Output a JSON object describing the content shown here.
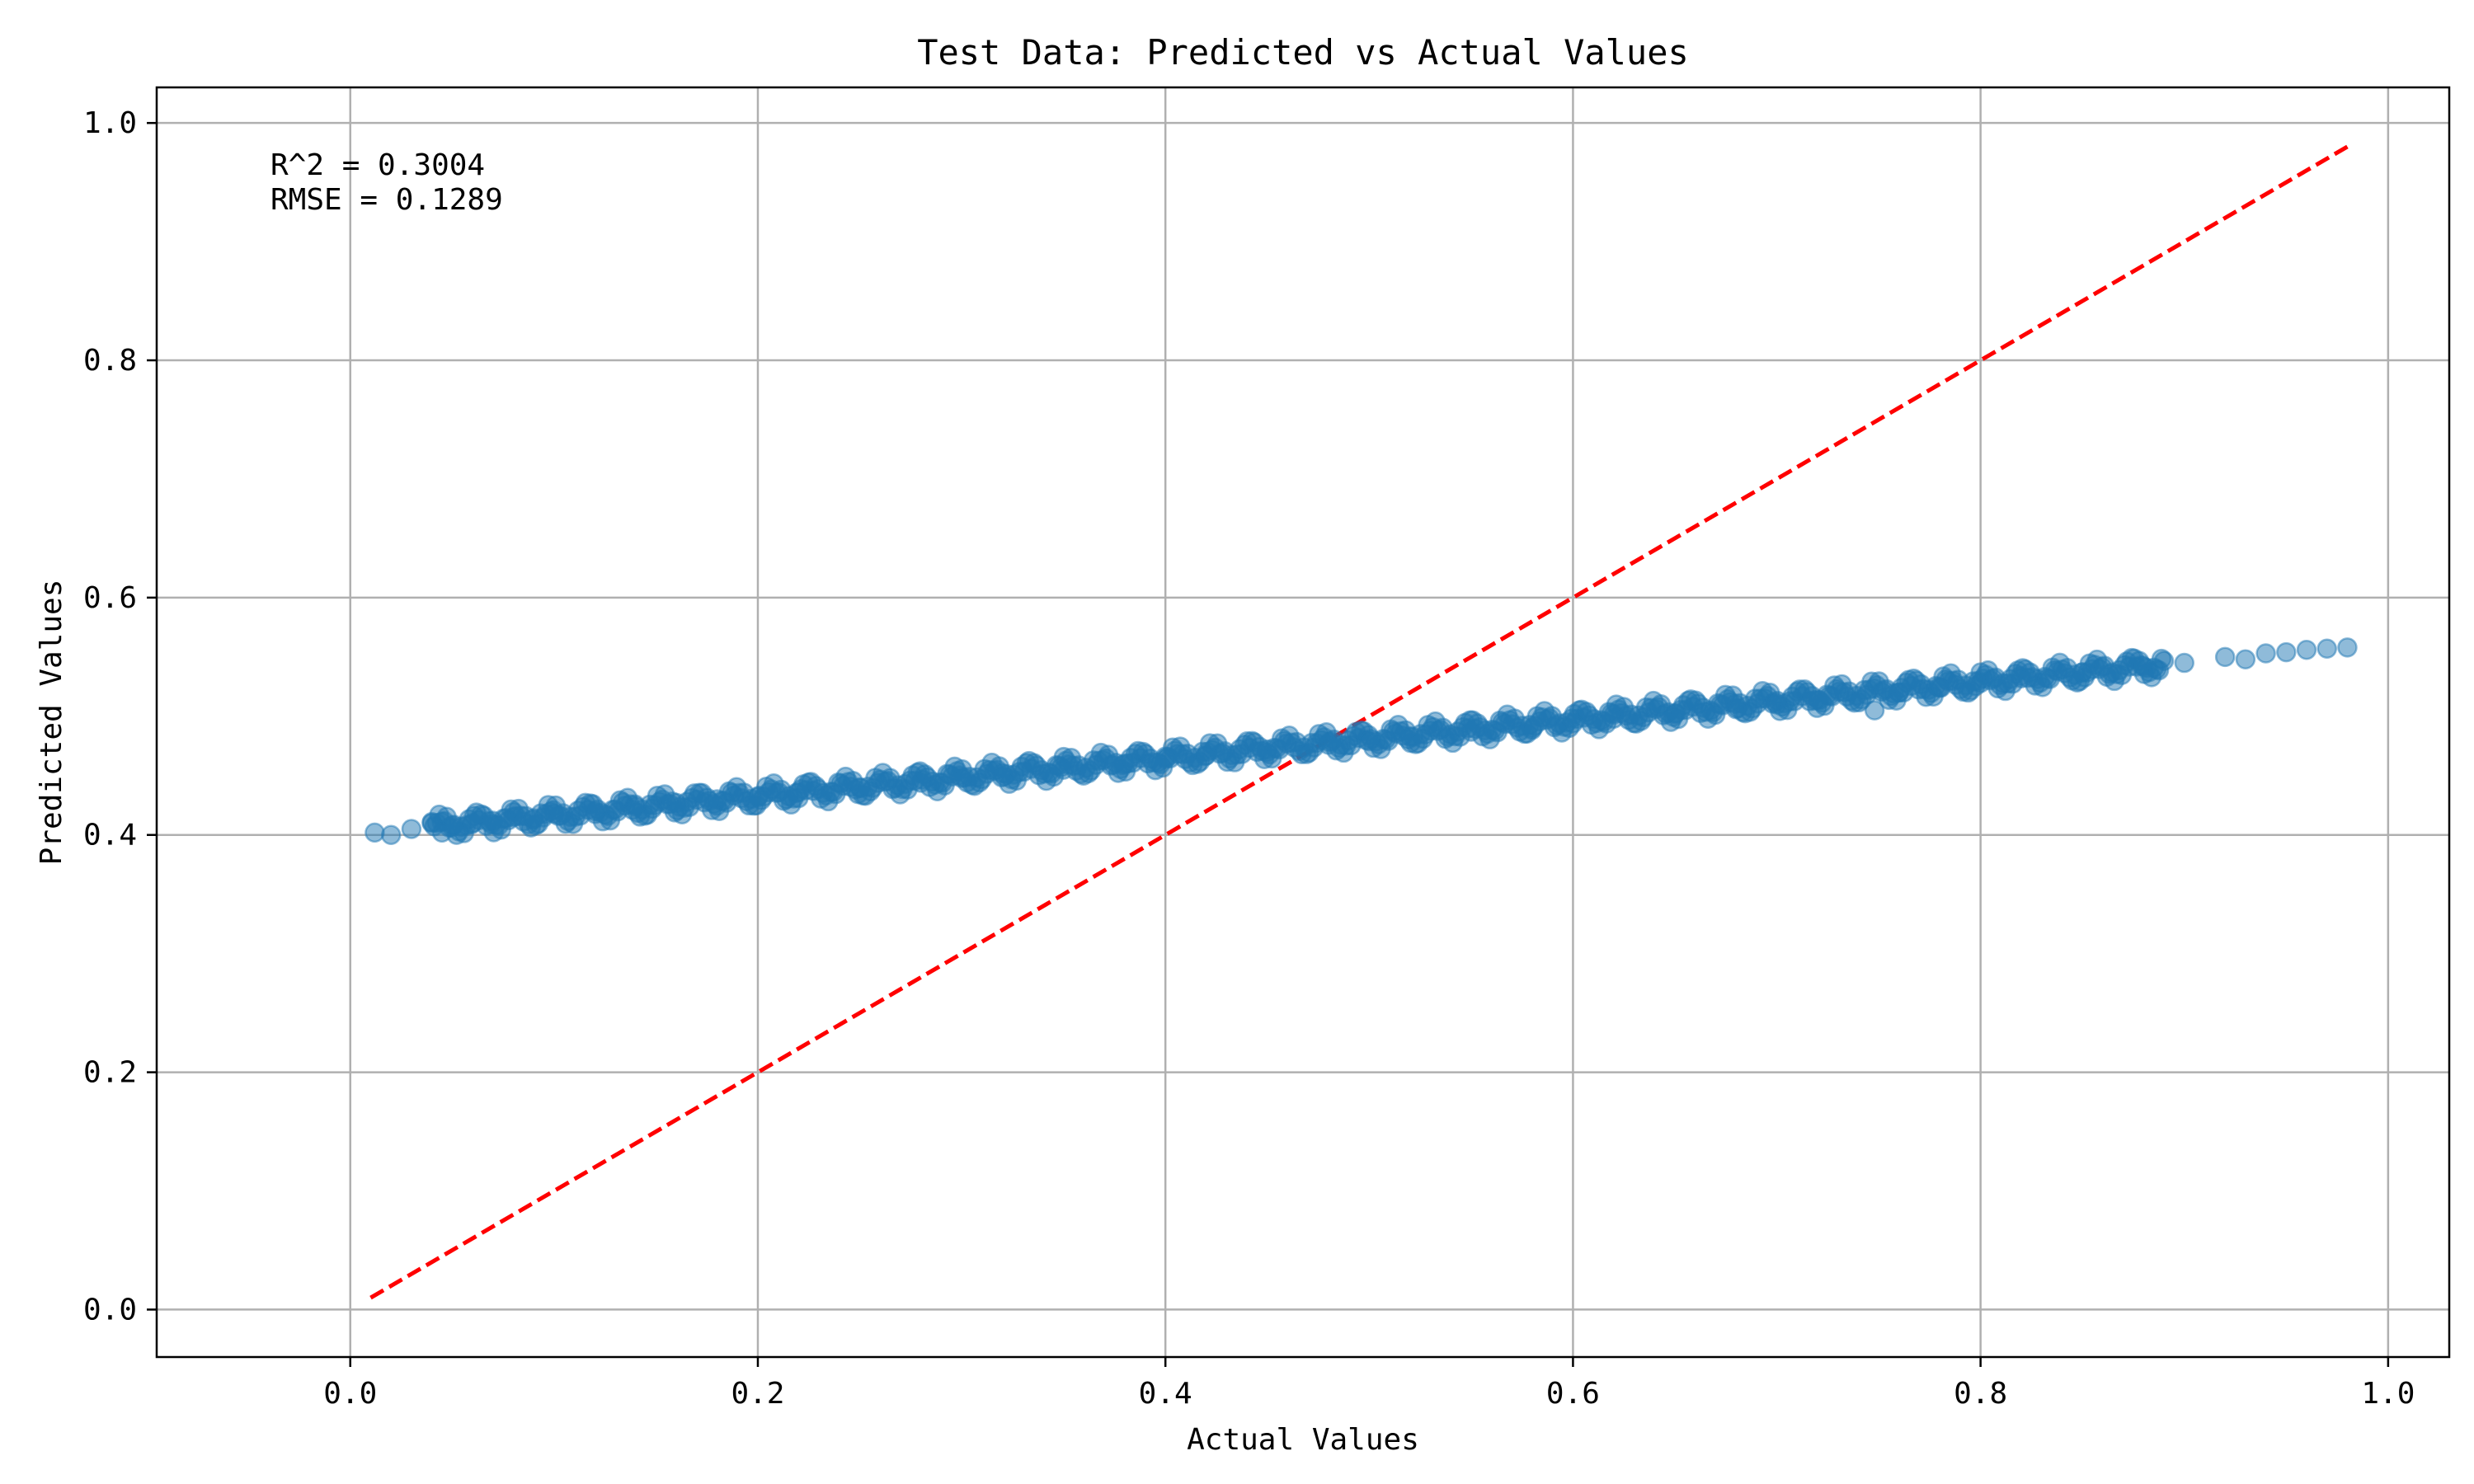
{
  "chart_data": {
    "type": "scatter",
    "title": "Test Data: Predicted vs Actual Values",
    "xlabel": "Actual Values",
    "ylabel": "Predicted Values",
    "xlim": [
      -0.095,
      1.03
    ],
    "ylim": [
      -0.04,
      1.03
    ],
    "xticks": [
      0.0,
      0.2,
      0.4,
      0.6,
      0.8,
      1.0
    ],
    "yticks": [
      0.0,
      0.2,
      0.4,
      0.6,
      0.8,
      1.0
    ],
    "xtick_labels": [
      "0.0",
      "0.2",
      "0.4",
      "0.6",
      "0.8",
      "1.0"
    ],
    "ytick_labels": [
      "0.0",
      "0.2",
      "0.4",
      "0.6",
      "0.8",
      "1.0"
    ],
    "grid": true,
    "annotations": [
      "R^2 = 0.3004",
      "RMSE = 0.1289"
    ],
    "reference_line": {
      "x": [
        0.01,
        0.98
      ],
      "y": [
        0.01,
        0.98
      ],
      "color": "#ff0000",
      "style": "dashed"
    },
    "series": [
      {
        "color": "#1f77b4",
        "alpha": 0.5,
        "trend": {
          "x": [
            0.01,
            0.98
          ],
          "y": [
            0.402,
            0.558
          ]
        },
        "x": [
          0.012,
          0.02,
          0.03,
          0.04,
          0.045,
          0.05,
          0.06,
          0.07,
          0.08,
          0.09,
          0.1,
          0.12,
          0.14,
          0.16,
          0.18,
          0.2,
          0.22,
          0.25,
          0.28,
          0.3,
          0.32,
          0.35,
          0.38,
          0.4,
          0.42,
          0.45,
          0.48,
          0.5,
          0.52,
          0.55,
          0.58,
          0.6,
          0.62,
          0.65,
          0.68,
          0.7,
          0.72,
          0.748,
          0.76,
          0.78,
          0.8,
          0.82,
          0.85,
          0.88,
          0.9,
          0.92,
          0.93,
          0.94,
          0.95,
          0.96,
          0.97,
          0.98
        ],
        "y": [
          0.402,
          0.4,
          0.405,
          0.41,
          0.402,
          0.408,
          0.41,
          0.412,
          0.415,
          0.414,
          0.418,
          0.42,
          0.424,
          0.427,
          0.43,
          0.432,
          0.436,
          0.44,
          0.444,
          0.448,
          0.452,
          0.455,
          0.46,
          0.464,
          0.467,
          0.472,
          0.476,
          0.479,
          0.483,
          0.487,
          0.49,
          0.494,
          0.498,
          0.502,
          0.506,
          0.51,
          0.514,
          0.505,
          0.52,
          0.524,
          0.528,
          0.532,
          0.537,
          0.542,
          0.545,
          0.55,
          0.548,
          0.553,
          0.554,
          0.556,
          0.557,
          0.558
        ]
      }
    ]
  }
}
